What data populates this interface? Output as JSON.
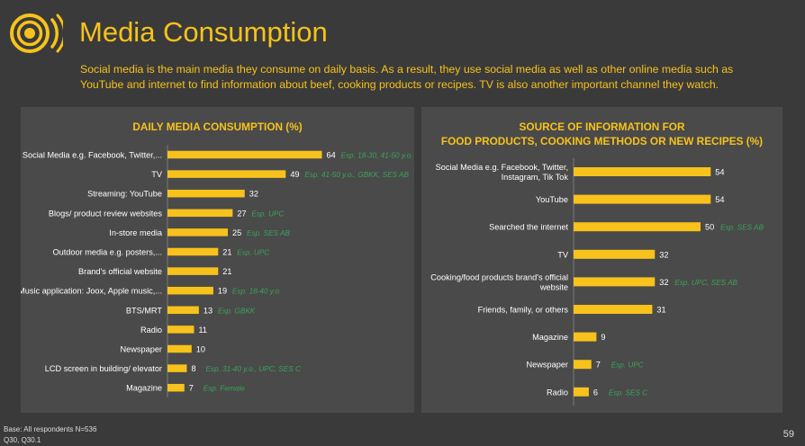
{
  "header": {
    "title": "Media Consumption",
    "subtitle": "Social media is the main media they consume on daily basis. As a result, they use social media as well as other online media such as YouTube and internet to find information about beef, cooking products or recipes. TV is also another important channel they watch."
  },
  "colors": {
    "accent": "#f7c21c",
    "bar": "#f7c21c",
    "annotation": "#3aa35a",
    "background": "#3a3a3a",
    "panel": "#4a4a4a"
  },
  "icons": {
    "logo": "broadcast-target-icon"
  },
  "chart_data": [
    {
      "type": "bar",
      "orientation": "horizontal",
      "title": "DAILY MEDIA CONSUMPTION (%)",
      "categories": [
        "Social Media e.g. Facebook, Twitter,...",
        "TV",
        "Streaming: YouTube",
        "Blogs/ product review websites",
        "In-store media",
        "Outdoor media e.g. posters,...",
        "Brand's official website",
        "Music application: Joox, Apple music,...",
        "BTS/MRT",
        "Radio",
        "Newspaper",
        "LCD screen in building/ elevator",
        "Magazine"
      ],
      "values": [
        64,
        49,
        32,
        27,
        25,
        21,
        21,
        19,
        13,
        11,
        10,
        8,
        7
      ],
      "annotations": [
        "Esp. 18-30, 41-50 y.o.",
        "Esp. 41-50 y.o., GBKK, SES AB",
        "",
        "Esp. UPC",
        "Esp. SES AB",
        "Esp. UPC",
        "",
        "Esp. 18-40 y.o.",
        "Esp. GBKK",
        "",
        "",
        "Esp. 31-40 y.o., UPC, SES C",
        "Esp. Female"
      ],
      "xlim": [
        0,
        100
      ],
      "grid": false,
      "legend": "none"
    },
    {
      "type": "bar",
      "orientation": "horizontal",
      "title_lines": [
        "SOURCE OF INFORMATION FOR",
        "FOOD PRODUCTS, COOKING METHODS OR NEW RECIPES (%)"
      ],
      "categories": [
        [
          "Social Media e.g. Facebook, Twitter,",
          "Instagram, Tik Tok"
        ],
        [
          "YouTube"
        ],
        [
          "Searched the internet"
        ],
        [
          "TV"
        ],
        [
          "Cooking/food products brand's official",
          "website"
        ],
        [
          "Friends, family, or others"
        ],
        [
          "Magazine"
        ],
        [
          "Newspaper"
        ],
        [
          "Radio"
        ]
      ],
      "values": [
        54,
        54,
        50,
        32,
        32,
        31,
        9,
        7,
        6
      ],
      "annotations": [
        "",
        "",
        "Esp. SES AB",
        "",
        "Esp. UPC, SES AB",
        "",
        "",
        "Esp. UPC",
        "Esp. SES C"
      ],
      "xlim": [
        0,
        100
      ],
      "grid": false,
      "legend": "none"
    }
  ],
  "footer": {
    "base": "Base: All respondents N=536",
    "questions": "Q30, Q30.1",
    "page": "59"
  }
}
